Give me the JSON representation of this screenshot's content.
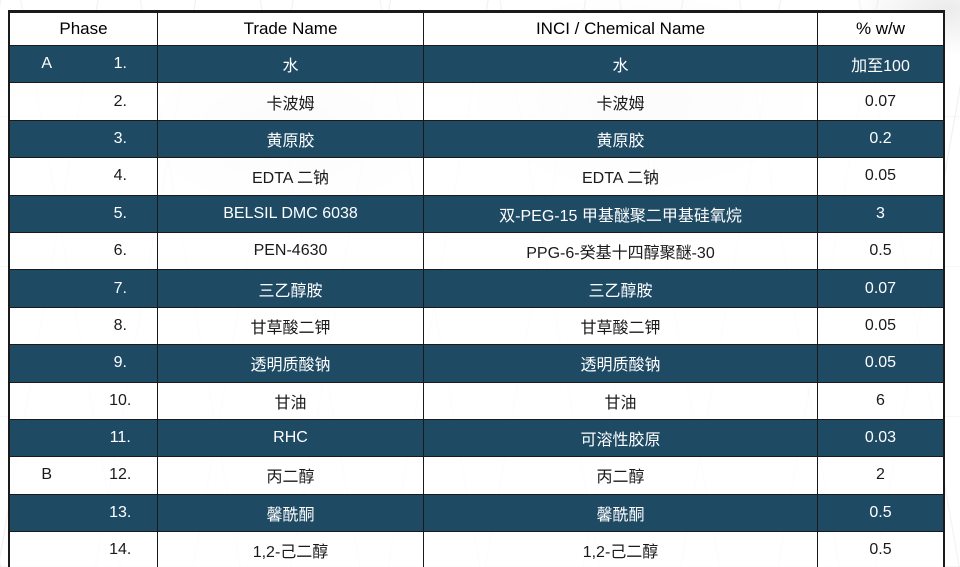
{
  "table": {
    "header": {
      "phase": "Phase",
      "trade_name": "Trade Name",
      "inci": "INCI / Chemical Name",
      "pct": "% w/w"
    },
    "colors": {
      "dark_row_bg": "#1E4A64",
      "dark_row_text": "#FFFFFF",
      "light_row_text": "#1A1A1A",
      "border": "#1A1A1A"
    },
    "rows": [
      {
        "phase": "A",
        "num": "1.",
        "trade": "水",
        "inci": "水",
        "pct": "加至100",
        "dark": true
      },
      {
        "phase": "",
        "num": "2.",
        "trade": "卡波姆",
        "inci": "卡波姆",
        "pct": "0.07",
        "dark": false
      },
      {
        "phase": "",
        "num": "3.",
        "trade": "黄原胶",
        "inci": "黄原胶",
        "pct": "0.2",
        "dark": true
      },
      {
        "phase": "",
        "num": "4.",
        "trade": "EDTA 二钠",
        "inci": "EDTA 二钠",
        "pct": "0.05",
        "dark": false
      },
      {
        "phase": "",
        "num": "5.",
        "trade": "BELSIL DMC 6038",
        "inci": "双-PEG-15 甲基醚聚二甲基硅氧烷",
        "pct": "3",
        "dark": true
      },
      {
        "phase": "",
        "num": "6.",
        "trade": "PEN-4630",
        "inci": "PPG-6-癸基十四醇聚醚-30",
        "pct": "0.5",
        "dark": false
      },
      {
        "phase": "",
        "num": "7.",
        "trade": "三乙醇胺",
        "inci": "三乙醇胺",
        "pct": "0.07",
        "dark": true
      },
      {
        "phase": "",
        "num": "8.",
        "trade": "甘草酸二钾",
        "inci": "甘草酸二钾",
        "pct": "0.05",
        "dark": false
      },
      {
        "phase": "",
        "num": "9.",
        "trade": "透明质酸钠",
        "inci": "透明质酸钠",
        "pct": "0.05",
        "dark": true
      },
      {
        "phase": "",
        "num": "10.",
        "trade": "甘油",
        "inci": "甘油",
        "pct": "6",
        "dark": false
      },
      {
        "phase": "",
        "num": "11.",
        "trade": "RHC",
        "inci": "可溶性胶原",
        "pct": "0.03",
        "dark": true
      },
      {
        "phase": "B",
        "num": "12.",
        "trade": "丙二醇",
        "inci": "丙二醇",
        "pct": "2",
        "dark": false
      },
      {
        "phase": "",
        "num": "13.",
        "trade": "馨酰酮",
        "inci": "馨酰酮",
        "pct": "0.5",
        "dark": true
      },
      {
        "phase": "",
        "num": "14.",
        "trade": "1,2-己二醇",
        "inci": "1,2-己二醇",
        "pct": "0.5",
        "dark": false
      }
    ]
  }
}
